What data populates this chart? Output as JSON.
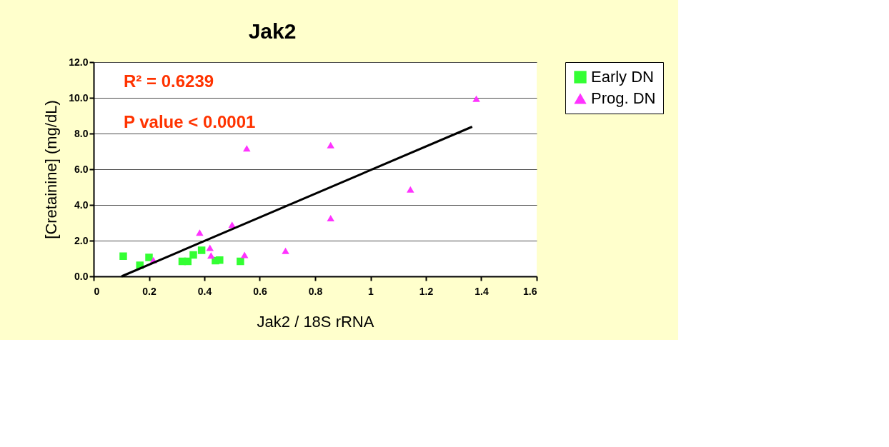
{
  "chart_data": {
    "type": "scatter",
    "title": "Jak2",
    "xlabel": "Jak2 / 18S rRNA",
    "ylabel": "[Cretainine] (mg/dL)",
    "annotations": [
      "R² = 0.6239",
      "P value < 0.0001"
    ],
    "series": [
      {
        "name": "Early DN",
        "color": "#33ff33",
        "marker": "square",
        "x": [
          0.107,
          0.167,
          0.2,
          0.32,
          0.34,
          0.36,
          0.39,
          0.44,
          0.455,
          0.53
        ],
        "values": [
          1.13,
          0.62,
          1.06,
          0.84,
          0.84,
          1.2,
          1.46,
          0.88,
          0.91,
          0.84
        ]
      },
      {
        "name": "Prog. DN",
        "color": "#ff33ff",
        "marker": "triangle",
        "x": [
          0.216,
          0.383,
          0.42,
          0.424,
          0.5,
          0.545,
          0.553,
          0.693,
          0.856,
          0.856,
          1.144,
          1.382
        ],
        "values": [
          0.91,
          2.45,
          1.6,
          1.17,
          2.89,
          1.2,
          7.17,
          1.43,
          7.35,
          3.26,
          4.87,
          9.95
        ]
      },
      {
        "type": "line",
        "color": "#000000",
        "x": [
          0.101,
          1.367
        ],
        "values": [
          0.0,
          8.38
        ]
      }
    ],
    "xlim": [
      0,
      1.6
    ],
    "xticks": [
      0,
      0.2,
      0.4,
      0.6,
      0.8,
      1,
      1.2,
      1.4,
      1.6
    ],
    "ylim": [
      0,
      12
    ],
    "yticks": [
      {
        "value": 0,
        "label": "0.0"
      },
      {
        "value": 2,
        "label": "2.0"
      },
      {
        "value": 4,
        "label": "4.0"
      },
      {
        "value": 6,
        "label": "6.0"
      },
      {
        "value": 8,
        "label": "8.0"
      },
      {
        "value": 10,
        "label": "10.0"
      },
      {
        "value": 12,
        "label": "12.0"
      }
    ],
    "grid": "y",
    "legend": "right"
  }
}
